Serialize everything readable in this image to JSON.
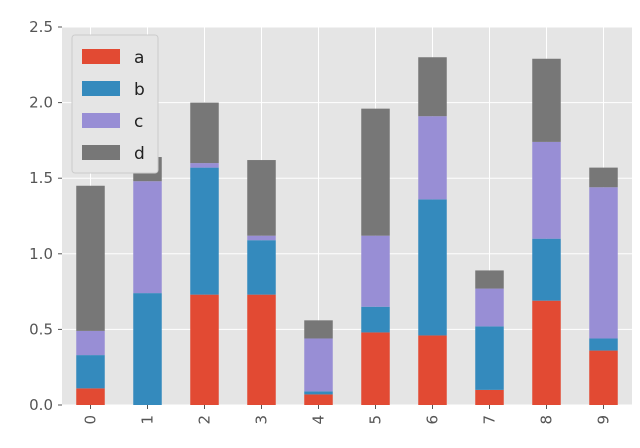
{
  "chart_data": {
    "type": "bar",
    "stacked": true,
    "categories": [
      "0",
      "1",
      "2",
      "3",
      "4",
      "5",
      "6",
      "7",
      "8",
      "9"
    ],
    "series": [
      {
        "name": "a",
        "color": "#e24a33",
        "values": [
          0.11,
          0.0,
          0.73,
          0.73,
          0.07,
          0.48,
          0.46,
          0.1,
          0.69,
          0.36
        ]
      },
      {
        "name": "b",
        "color": "#348abd",
        "values": [
          0.22,
          0.74,
          0.84,
          0.36,
          0.02,
          0.17,
          0.9,
          0.42,
          0.41,
          0.08
        ]
      },
      {
        "name": "c",
        "color": "#988ed5",
        "values": [
          0.16,
          0.74,
          0.03,
          0.03,
          0.35,
          0.47,
          0.55,
          0.25,
          0.64,
          1.0
        ]
      },
      {
        "name": "d",
        "color": "#777777",
        "values": [
          0.96,
          0.16,
          0.4,
          0.5,
          0.12,
          0.84,
          0.39,
          0.12,
          0.55,
          0.13
        ]
      }
    ],
    "ylim": [
      0,
      2.5
    ],
    "yticks": [
      "0.0",
      "0.5",
      "1.0",
      "1.5",
      "2.0",
      "2.5"
    ],
    "grid": true,
    "legend": "top-left",
    "xtick_rotation": "vertical"
  }
}
